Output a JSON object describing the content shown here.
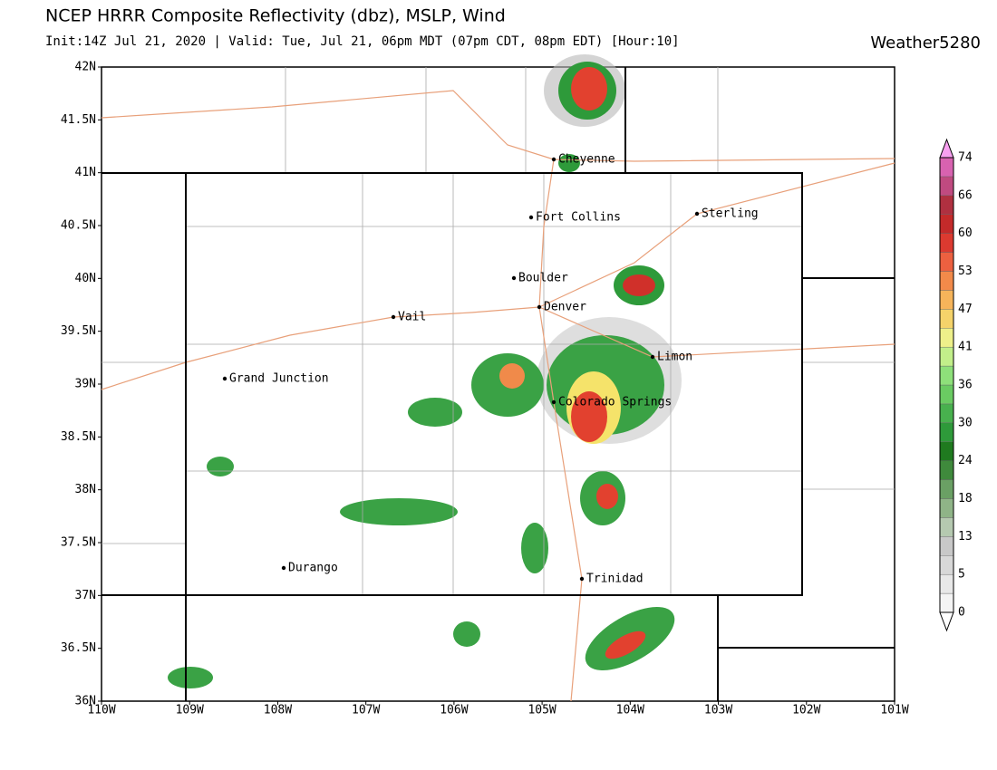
{
  "header": {
    "title": "NCEP HRRR Composite Reflectivity (dbz), MSLP, Wind",
    "subtitle": "Init:14Z Jul 21, 2020 | Valid: Tue, Jul 21, 06pm MDT (07pm CDT, 08pm EDT) [Hour:10]",
    "brand": "Weather5280"
  },
  "map": {
    "lat_labels": [
      "42N",
      "41.5N",
      "41N",
      "40.5N",
      "40N",
      "39.5N",
      "39N",
      "38.5N",
      "38N",
      "37.5N",
      "37N",
      "36.5N",
      "36N"
    ],
    "lon_labels": [
      "110W",
      "109W",
      "108W",
      "107W",
      "106W",
      "105W",
      "104W",
      "103W",
      "102W",
      "101W"
    ],
    "cities": [
      "Cheyenne",
      "Fort Collins",
      "Sterling",
      "Boulder",
      "Denver",
      "Vail",
      "Limon",
      "Grand Junction",
      "Colorado Springs",
      "Durango",
      "Trinidad"
    ]
  },
  "legend": {
    "labels": [
      0,
      5,
      13,
      18,
      24,
      30,
      36,
      41,
      47,
      53,
      60,
      66,
      74
    ]
  }
}
